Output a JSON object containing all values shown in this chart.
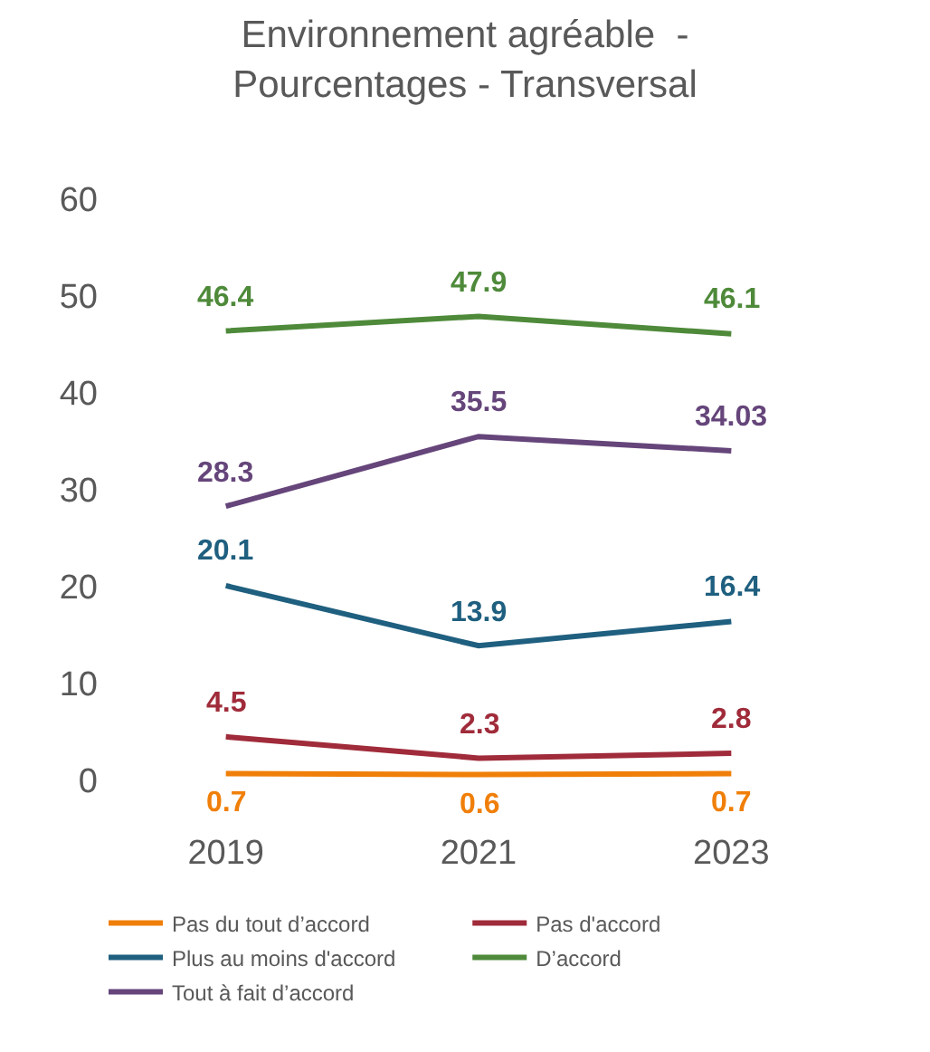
{
  "chart_data": {
    "type": "line",
    "title": "Environnement agréable  -\nPourcentages - Transversal",
    "categories": [
      "2019",
      "2021",
      "2023"
    ],
    "series": [
      {
        "name": "Pas du tout d’accord",
        "color": "#f07f09",
        "values": [
          0.7,
          0.6,
          0.7
        ]
      },
      {
        "name": "Pas d'accord",
        "color": "#a02b3a",
        "values": [
          4.5,
          2.3,
          2.8
        ]
      },
      {
        "name": "Plus au moins d'accord",
        "color": "#1f5f7f",
        "values": [
          20.1,
          13.9,
          16.4
        ]
      },
      {
        "name": "D’accord",
        "color": "#4e8a3a",
        "values": [
          46.4,
          47.9,
          46.1
        ]
      },
      {
        "name": "Tout à fait d’accord",
        "color": "#65457a",
        "values": [
          28.3,
          35.5,
          34.03
        ]
      }
    ],
    "ylim": [
      0,
      60
    ],
    "yticks": [
      0,
      10,
      20,
      30,
      40,
      50,
      60
    ],
    "grid": false,
    "legend": "bottom",
    "marker": "none",
    "line_style": "solid",
    "data_labels": true
  }
}
